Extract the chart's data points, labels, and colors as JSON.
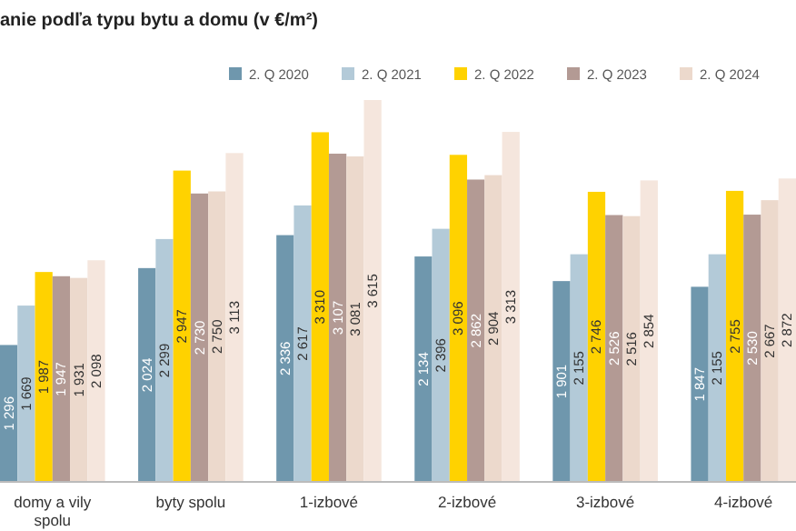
{
  "chart_data": {
    "type": "bar",
    "title": "anie podľa typu bytu a domu (v €/m²)",
    "relative": false,
    "categories": [
      "domy a vily spolu",
      "byty spolu",
      "1-izbové",
      "2-izbové",
      "3-izbové",
      "4-izbové"
    ],
    "series": [
      {
        "name": "2. Q 2020",
        "color": "#6f97ad",
        "values": [
          1296,
          2024,
          2336,
          2134,
          1901,
          1847
        ],
        "value_labels": [
          "1 296",
          "2 024",
          "2 336",
          "2 134",
          "1 901",
          "1 847"
        ]
      },
      {
        "name": "2. Q 2021",
        "color": "#b3cad8",
        "values": [
          1669,
          2299,
          2617,
          2396,
          2155,
          2155
        ],
        "value_labels": [
          "1 669",
          "2 299",
          "2 617",
          "2 396",
          "2 155",
          "2 155"
        ]
      },
      {
        "name": "2. Q 2022",
        "color": "#ffd200",
        "values": [
          1987,
          2947,
          3310,
          3096,
          2746,
          2755
        ],
        "value_labels": [
          "1 987",
          "2 947",
          "3 310",
          "3 096",
          "2 746",
          "2 755"
        ]
      },
      {
        "name": "2. Q 2023",
        "color": "#b39a94",
        "values": [
          1947,
          2730,
          3107,
          2862,
          2526,
          2530
        ],
        "value_labels": [
          "1 947",
          "2 730",
          "3 107",
          "2 862",
          "2 526",
          "2 530"
        ]
      },
      {
        "name": "2. Q 2024",
        "color": "#ecd9cc",
        "values": [
          1931,
          2750,
          3081,
          2904,
          2516,
          2667
        ],
        "value_labels": [
          "1 931",
          "2 750",
          "3 081",
          "2 904",
          "2 516",
          "2 667"
        ]
      },
      {
        "color": "#f5e6dd",
        "values": [
          2098,
          3113,
          3615,
          3313,
          2854,
          2872
        ],
        "value_labels": [
          "2 098",
          "3 113",
          "3 615",
          "3 313",
          "2 854",
          "2 872"
        ]
      }
    ],
    "legend": "top right"
  }
}
